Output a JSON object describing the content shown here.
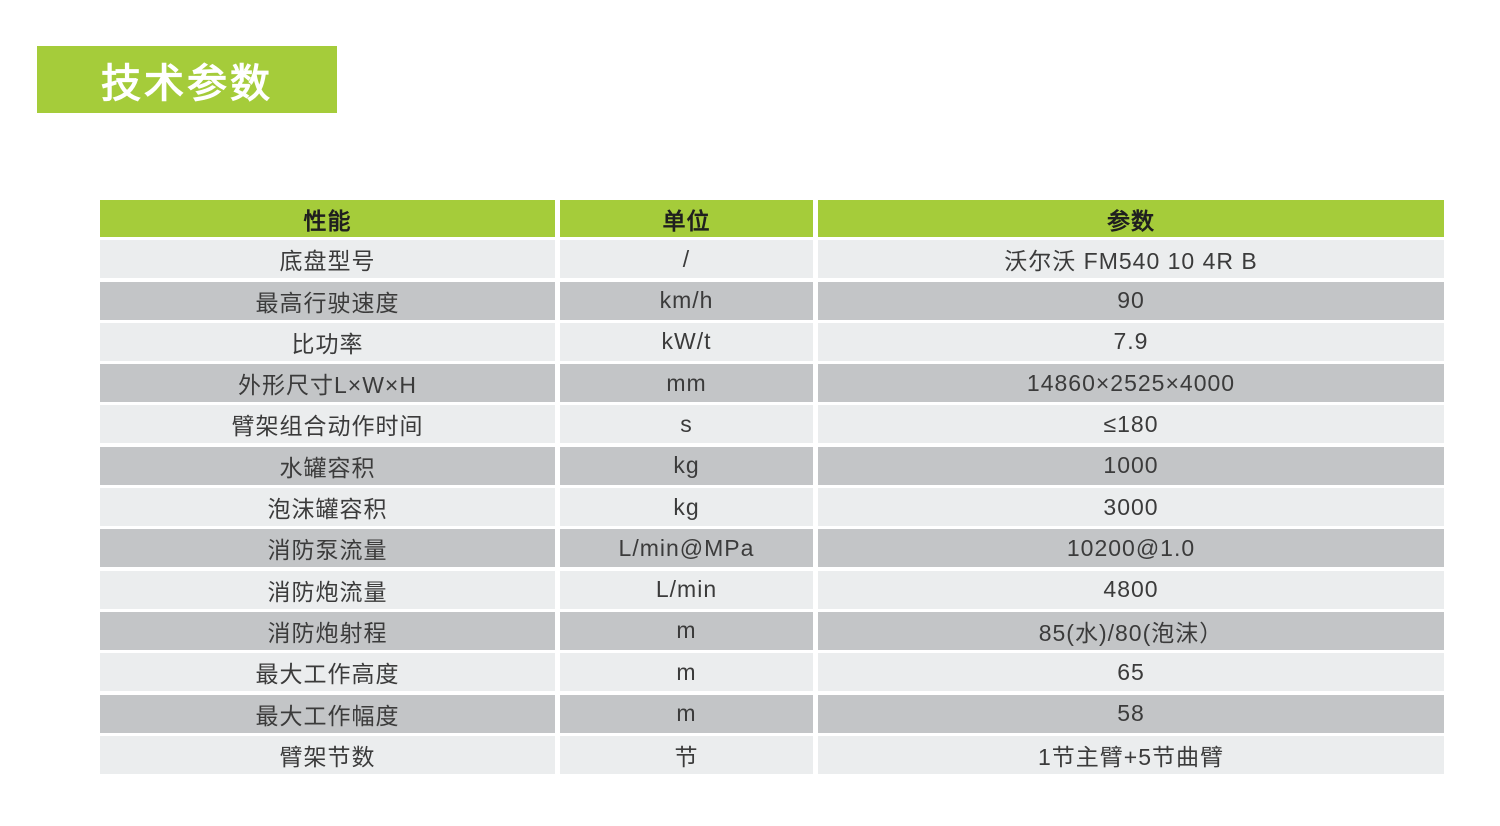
{
  "page": {
    "title": "技术参数"
  },
  "colors": {
    "accent_green": "#a5cc3a",
    "row_light": "#ebedee",
    "row_dark": "#c3c5c7",
    "title_text": "#ffffff",
    "cell_text": "#3b3b3b"
  },
  "table": {
    "headers": [
      "性能",
      "单位",
      "参数"
    ],
    "rows": [
      [
        "底盘型号",
        "/",
        "沃尔沃 FM540 10 4R B"
      ],
      [
        "最高行驶速度",
        "km/h",
        "90"
      ],
      [
        "比功率",
        "kW/t",
        "7.9"
      ],
      [
        "外形尺寸L×W×H",
        "mm",
        "14860×2525×4000"
      ],
      [
        "臂架组合动作时间",
        "s",
        "≤180"
      ],
      [
        "水罐容积",
        "kg",
        "1000"
      ],
      [
        "泡沫罐容积",
        "kg",
        "3000"
      ],
      [
        "消防泵流量",
        "L/min@MPa",
        "10200@1.0"
      ],
      [
        "消防炮流量",
        "L/min",
        "4800"
      ],
      [
        "消防炮射程",
        "m",
        "85(水)/80(泡沫）"
      ],
      [
        "最大工作高度",
        "m",
        "65"
      ],
      [
        "最大工作幅度",
        "m",
        "58"
      ],
      [
        "臂架节数",
        "节",
        "1节主臂+5节曲臂"
      ]
    ]
  }
}
